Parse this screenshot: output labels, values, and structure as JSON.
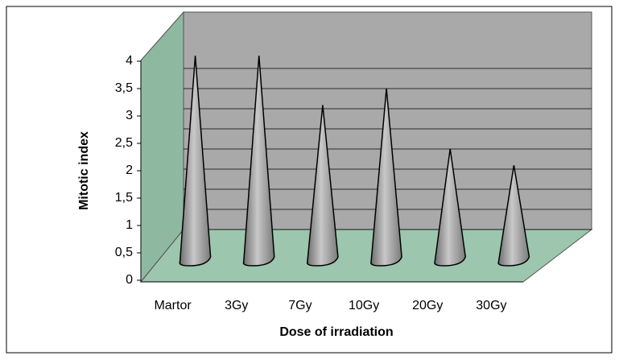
{
  "chart_data": {
    "type": "cone3d",
    "x_label": "Dose of irradiation",
    "y_label": "Mitotic index",
    "categories": [
      "Martor",
      "3Gy",
      "7Gy",
      "10Gy",
      "20Gy",
      "30Gy"
    ],
    "values": [
      4.1,
      4.1,
      3.2,
      3.5,
      2.4,
      2.1
    ],
    "color": "#a0a0a0",
    "ylim": [
      0,
      4
    ],
    "yticks": [
      0,
      {
        "value": 0.5,
        "label": "0,5"
      },
      1,
      {
        "value": 1.5,
        "label": "1,5"
      },
      2,
      {
        "value": 2.5,
        "label": "2,5"
      },
      3,
      {
        "value": 3.5,
        "label": "3,5"
      },
      4
    ],
    "grid": true
  }
}
